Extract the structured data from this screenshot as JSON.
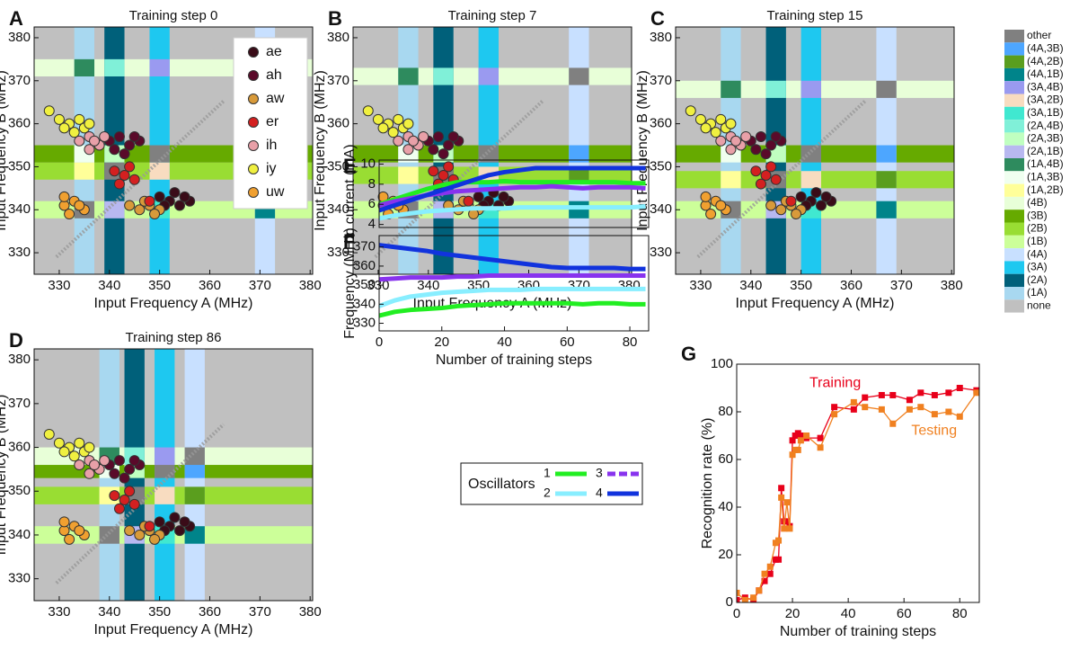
{
  "chart_data": [
    {
      "type": "heatmap",
      "panel": "A",
      "title": "Training step 0",
      "xlabel": "Input Frequency A (MHz)",
      "ylabel": "Input Frequency B (MHz)",
      "xlim": [
        325,
        380.5
      ],
      "ylim": [
        325,
        382.5
      ],
      "xticks": [
        330,
        340,
        350,
        360,
        370,
        380
      ],
      "yticks": [
        330,
        340,
        350,
        360,
        370,
        380
      ],
      "a_centers": [
        335,
        341,
        350,
        371
      ],
      "b_centers": [
        340,
        349,
        353,
        373
      ],
      "vowel_legend": "upper right"
    },
    {
      "type": "heatmap",
      "panel": "B",
      "title": "Training step 7",
      "xlabel": "Input Frequency A (MHz)",
      "ylabel": "Input Frequency B (MHz)",
      "xlim": [
        325,
        380.5
      ],
      "ylim": [
        325,
        382.5
      ],
      "xticks": [
        330,
        340,
        350,
        360,
        370,
        380
      ],
      "yticks": [
        330,
        340,
        350,
        360,
        370,
        380
      ],
      "a_centers": [
        336,
        343,
        352,
        370
      ],
      "b_centers": [
        340,
        348,
        353,
        371
      ]
    },
    {
      "type": "heatmap",
      "panel": "C",
      "title": "Training step 15",
      "xlabel": "Input Frequency A (MHz)",
      "ylabel": "Input Frequency B (MHz)",
      "xlim": [
        325,
        380.5
      ],
      "ylim": [
        325,
        382.5
      ],
      "xticks": [
        330,
        340,
        350,
        360,
        370,
        380
      ],
      "yticks": [
        330,
        340,
        350,
        360,
        370,
        380
      ],
      "a_centers": [
        336,
        345,
        352,
        367
      ],
      "b_centers": [
        340,
        347,
        353,
        368
      ]
    },
    {
      "type": "heatmap",
      "panel": "D",
      "title": "Training step 86",
      "xlabel": "Input Frequency A (MHz)",
      "ylabel": "Input Frequency B (MHz)",
      "xlim": [
        325,
        380.5
      ],
      "ylim": [
        325,
        382.5
      ],
      "xticks": [
        330,
        340,
        350,
        360,
        370,
        380
      ],
      "yticks": [
        330,
        340,
        350,
        360,
        370,
        380
      ],
      "a_centers": [
        340,
        345,
        351,
        357
      ],
      "b_centers": [
        340,
        349,
        355,
        358
      ]
    },
    {
      "type": "line",
      "panel": "E",
      "ylabel": "dc current (mA)",
      "xlim": [
        0,
        86
      ],
      "ylim": [
        3.7,
        10.4
      ],
      "yticks": [
        4,
        6,
        8,
        10
      ],
      "line_width": 5,
      "x": [
        0,
        5,
        10,
        15,
        20,
        25,
        30,
        35,
        40,
        45,
        50,
        55,
        60,
        65,
        70,
        75,
        80,
        85
      ],
      "series": [
        {
          "color": "#22ee22",
          "values": [
            6.0,
            6.5,
            7.0,
            7.5,
            7.9,
            8.2,
            8.2,
            8.2,
            8.3,
            8.2,
            8.2,
            8.2,
            8.2,
            8.2,
            8.2,
            8.2,
            8.1,
            8.1
          ]
        },
        {
          "color": "#88eeff",
          "values": [
            4.6,
            4.9,
            5.1,
            5.3,
            5.4,
            5.5,
            5.6,
            5.6,
            5.6,
            5.7,
            5.7,
            5.7,
            5.7,
            5.7,
            5.7,
            5.7,
            5.7,
            5.8
          ]
        },
        {
          "color": "#8833ee",
          "values": [
            5.9,
            6.3,
            6.6,
            6.9,
            7.1,
            7.3,
            7.4,
            7.5,
            7.6,
            7.7,
            7.7,
            7.8,
            7.7,
            7.6,
            7.7,
            7.7,
            7.7,
            7.6
          ]
        },
        {
          "color": "#1133dd",
          "values": [
            5.4,
            5.9,
            6.4,
            6.9,
            7.4,
            7.9,
            8.4,
            8.9,
            9.2,
            9.4,
            9.6,
            9.6,
            9.6,
            9.6,
            9.6,
            9.6,
            9.6,
            9.6
          ]
        }
      ]
    },
    {
      "type": "line",
      "panel": "F",
      "ylabel": "Frequency (MHz)",
      "xlabel": "Number of training steps",
      "legend_title": "Oscillators",
      "xlim": [
        0,
        86
      ],
      "ylim": [
        326,
        376
      ],
      "xticks": [
        0,
        20,
        40,
        60,
        80
      ],
      "yticks": [
        330,
        340,
        350,
        360,
        370
      ],
      "line_width": 5,
      "x": [
        0,
        5,
        10,
        15,
        20,
        25,
        30,
        35,
        40,
        45,
        50,
        55,
        60,
        65,
        70,
        75,
        80,
        85
      ],
      "series": [
        {
          "name": "1",
          "color": "#22ee22",
          "values": [
            334,
            336,
            337,
            337.5,
            338,
            339,
            339.5,
            340,
            340.5,
            340.5,
            340.5,
            340.5,
            340.5,
            340,
            340.5,
            340.5,
            340,
            340
          ]
        },
        {
          "name": "2",
          "color": "#88eeff",
          "values": [
            339,
            342,
            344,
            345,
            346,
            346.5,
            347,
            347.5,
            347.5,
            347.5,
            348,
            348,
            348,
            348,
            348,
            348,
            348,
            348
          ]
        },
        {
          "name": "3",
          "color": "#8833ee",
          "values": [
            353,
            353.5,
            354,
            354,
            354,
            354.5,
            354.5,
            355,
            355,
            355,
            355,
            355,
            355,
            355,
            355,
            355,
            355,
            355
          ]
        },
        {
          "name": "4",
          "color": "#1133dd",
          "values": [
            371,
            370,
            369,
            368,
            366.5,
            365.5,
            364.5,
            363.5,
            362.5,
            361.5,
            360.5,
            359.5,
            359,
            359,
            359,
            359,
            358.5,
            358.5
          ]
        }
      ]
    },
    {
      "type": "marker_line",
      "panel": "G",
      "ylabel": "Recognition rate (%)",
      "xlabel": "Number of training steps",
      "xlim": [
        0,
        87
      ],
      "ylim": [
        0,
        100
      ],
      "xticks": [
        0,
        20,
        40,
        60,
        80
      ],
      "yticks": [
        0,
        20,
        40,
        60,
        80,
        100
      ],
      "line_width": 1.3,
      "x": [
        0,
        3,
        6,
        8,
        10,
        12,
        14,
        15,
        16,
        17,
        18,
        19,
        20,
        21,
        22,
        23,
        25,
        30,
        35,
        42,
        46,
        52,
        56,
        62,
        66,
        71,
        76,
        80,
        86
      ],
      "series": [
        {
          "name": "Training",
          "color": "#e8001a",
          "values": [
            1,
            2,
            1,
            5,
            9,
            12,
            18,
            18,
            48,
            34,
            34,
            32,
            68,
            70,
            71,
            70,
            69,
            69,
            82,
            81,
            86,
            87,
            87,
            85,
            88,
            87,
            88,
            90,
            89
          ]
        },
        {
          "name": "Testing",
          "color": "#f08020",
          "values": [
            4,
            1,
            2,
            5,
            12,
            15,
            25,
            26,
            44,
            31,
            42,
            31,
            62,
            64,
            64,
            68,
            70,
            65,
            79,
            84,
            82,
            81,
            75,
            81,
            82,
            79,
            80,
            78,
            88
          ]
        }
      ]
    }
  ],
  "vowels": [
    {
      "name": "ae",
      "color": "#3a0c18",
      "x": [
        350,
        352,
        354,
        356,
        353,
        351,
        355
      ],
      "y": [
        343,
        342,
        341,
        342,
        344,
        341,
        343
      ]
    },
    {
      "name": "ah",
      "color": "#5a0a2a",
      "x": [
        340,
        342,
        344,
        346,
        341,
        343,
        345
      ],
      "y": [
        356,
        357,
        355,
        356,
        354,
        353,
        357
      ]
    },
    {
      "name": "aw",
      "color": "#d89a3a",
      "x": [
        344,
        346,
        348,
        350,
        347,
        349
      ],
      "y": [
        341,
        340,
        341,
        340,
        342,
        339
      ]
    },
    {
      "name": "er",
      "color": "#d42020",
      "x": [
        341,
        343,
        345,
        342,
        344,
        348
      ],
      "y": [
        349,
        348,
        347,
        346,
        350,
        342
      ]
    },
    {
      "name": "ih",
      "color": "#e8a0a8",
      "x": [
        334,
        336,
        338,
        336,
        339,
        337
      ],
      "y": [
        356,
        357,
        355,
        354,
        357,
        356
      ]
    },
    {
      "name": "iy",
      "color": "#f0f040",
      "x": [
        328,
        330,
        332,
        334,
        335,
        333,
        336,
        331
      ],
      "y": [
        363,
        361,
        360,
        361,
        359,
        358,
        360,
        359
      ]
    },
    {
      "name": "uw",
      "color": "#f0a030",
      "x": [
        331,
        333,
        335,
        332,
        334,
        331
      ],
      "y": [
        341,
        342,
        340,
        339,
        341,
        343
      ]
    }
  ],
  "region_legend": [
    {
      "name": "other",
      "color": "#808080"
    },
    {
      "name": "(4A,3B)",
      "color": "#4da6ff"
    },
    {
      "name": "(4A,2B)",
      "color": "#5a9e1e"
    },
    {
      "name": "(4A,1B)",
      "color": "#00848a"
    },
    {
      "name": "(3A,4B)",
      "color": "#9a9af0"
    },
    {
      "name": "(3A,2B)",
      "color": "#f8dcc0"
    },
    {
      "name": "(3A,1B)",
      "color": "#40e8d0"
    },
    {
      "name": "(2A,4B)",
      "color": "#80f0d8"
    },
    {
      "name": "(2A,3B)",
      "color": "#c0ffc0"
    },
    {
      "name": "(2A,1B)",
      "color": "#b8b8f0"
    },
    {
      "name": "(1A,4B)",
      "color": "#2e8b5e"
    },
    {
      "name": "(1A,3B)",
      "color": "#f0fff0"
    },
    {
      "name": "(1A,2B)",
      "color": "#ffff99"
    },
    {
      "name": "(4B)",
      "color": "#e8ffd8"
    },
    {
      "name": "(3B)",
      "color": "#66aa00"
    },
    {
      "name": "(2B)",
      "color": "#99dd33"
    },
    {
      "name": "(1B)",
      "color": "#ccff99"
    },
    {
      "name": "(4A)",
      "color": "#c8e0ff"
    },
    {
      "name": "(3A)",
      "color": "#1ec8f0"
    },
    {
      "name": "(2A)",
      "color": "#00607a"
    },
    {
      "name": "(1A)",
      "color": "#a8d8f0"
    },
    {
      "name": "none",
      "color": "#c0c0c0"
    }
  ]
}
